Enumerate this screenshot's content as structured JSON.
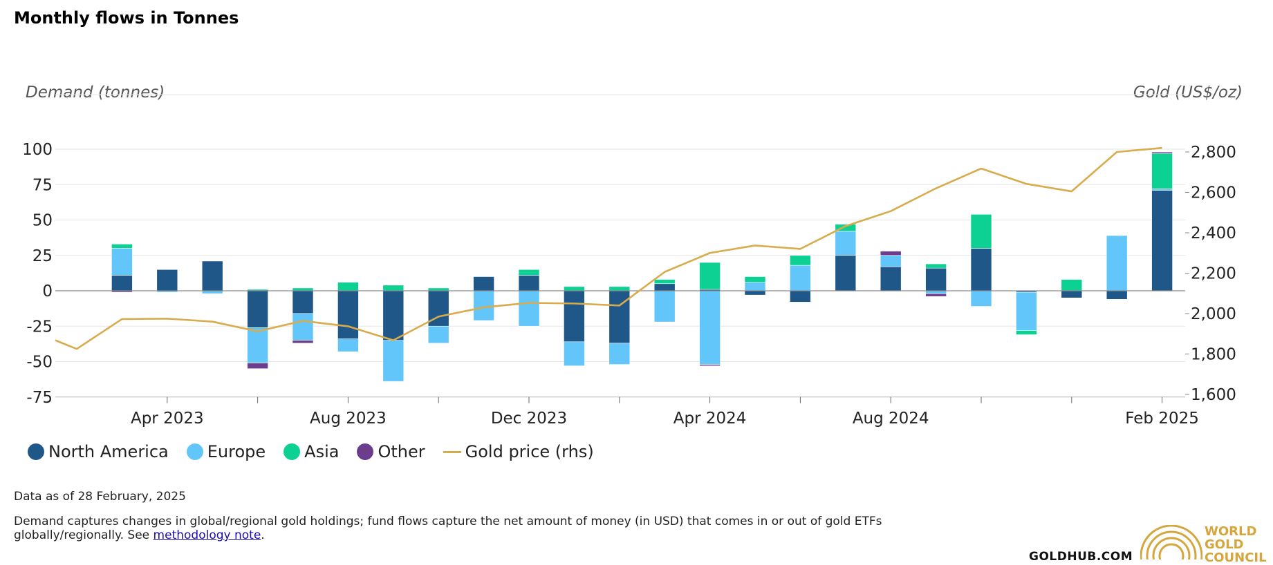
{
  "title": "Monthly flows in Tonnes",
  "footer": {
    "as_of": "Data as of 28 February, 2025",
    "desc_line1": "Demand captures changes in global/regional gold holdings; fund flows capture the net amount of money (in USD) that comes in or out of gold ETFs",
    "desc_line2_prefix": "globally/regionally. See ",
    "link_text": "methodology note",
    "desc_line2_suffix": ".",
    "site": "GOLDHUB.COM",
    "logo_line1": "WORLD",
    "logo_line2": "GOLD",
    "logo_line3": "COUNCIL"
  },
  "colors": {
    "north_america": "#1f5788",
    "europe": "#63c6fb",
    "asia": "#0dd192",
    "other": "#6b3d8c",
    "gold": "#d8ab4c"
  },
  "chart_data": {
    "type": "bar",
    "stacked": true,
    "y_left_label": "Demand (tonnes)",
    "y_right_label": "Gold (US$/oz)",
    "ylim_left": [
      -75,
      100
    ],
    "yticks_left": [
      "100",
      "75",
      "50",
      "25",
      "0",
      "-25",
      "-50",
      "-75"
    ],
    "ylim_right": [
      1600,
      2800
    ],
    "yticks_right": [
      "2,800",
      "2,600",
      "2,400",
      "2,200",
      "2,000",
      "1,800",
      "1,600"
    ],
    "xtick_labels": [
      {
        "label": "Apr 2023",
        "index": 2
      },
      {
        "label": "Aug 2023",
        "index": 6
      },
      {
        "label": "Dec 2023",
        "index": 10
      },
      {
        "label": "Apr 2024",
        "index": 14
      },
      {
        "label": "Aug 2024",
        "index": 18
      },
      {
        "label": "Feb 2025",
        "index": 24
      }
    ],
    "categories": [
      "Feb 2023",
      "Mar 2023",
      "Apr 2023",
      "May 2023",
      "Jun 2023",
      "Jul 2023",
      "Aug 2023",
      "Sep 2023",
      "Oct 2023",
      "Nov 2023",
      "Dec 2023",
      "Jan 2024",
      "Feb 2024",
      "Mar 2024",
      "Apr 2024",
      "May 2024",
      "Jun 2024",
      "Jul 2024",
      "Aug 2024",
      "Sep 2024",
      "Oct 2024",
      "Nov 2024",
      "Dec 2024",
      "Jan 2025",
      "Feb 2025"
    ],
    "series": [
      {
        "name": "North America",
        "key": "north_america",
        "values": [
          null,
          11,
          15,
          21,
          -26,
          -16,
          -34,
          -35,
          -25,
          10,
          11,
          -36,
          -37,
          5,
          1,
          -3,
          -8,
          25,
          17,
          16,
          30,
          -1,
          -5,
          -6,
          71
        ]
      },
      {
        "name": "Europe",
        "key": "europe",
        "values": [
          null,
          19,
          -1,
          -2,
          -25,
          -19,
          -9,
          -29,
          -12,
          -21,
          -25,
          -17,
          -15,
          -22,
          -52,
          6,
          18,
          17,
          8,
          -2,
          -11,
          -27,
          0,
          39,
          1
        ]
      },
      {
        "name": "Asia",
        "key": "asia",
        "values": [
          null,
          3,
          0,
          0,
          1,
          2,
          6,
          4,
          2,
          0,
          4,
          3,
          3,
          3,
          19,
          4,
          7,
          5,
          0,
          3,
          24,
          -3,
          8,
          0,
          25
        ]
      },
      {
        "name": "Other",
        "key": "other",
        "values": [
          null,
          -1,
          0,
          0,
          -4,
          -2,
          0,
          0,
          0,
          0,
          0,
          0,
          0,
          0,
          -1,
          0,
          0,
          0,
          3,
          -2,
          0,
          0,
          0,
          0,
          1
        ]
      }
    ],
    "line_series": {
      "name": "Gold price (rhs)",
      "key": "gold",
      "axis": "right",
      "values": [
        1825,
        1973,
        1975,
        1960,
        1912,
        1964,
        1937,
        1868,
        1985,
        2031,
        2053,
        2050,
        2040,
        2206,
        2300,
        2337,
        2320,
        2433,
        2507,
        2620,
        2718,
        2642,
        2605,
        2800,
        2820
      ],
      "pre_start_value": 1868
    },
    "legend": [
      "North America",
      "Europe",
      "Asia",
      "Other",
      "Gold price (rhs)"
    ]
  }
}
